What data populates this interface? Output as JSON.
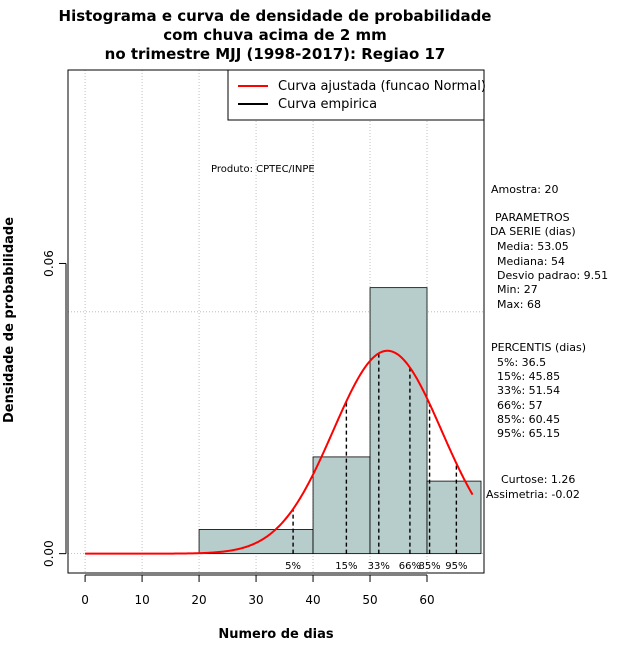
{
  "chart_data": {
    "type": "bar",
    "title_lines": [
      "Histograma e curva de densidade de probabilidade",
      "com chuva acima de 2 mm",
      "no trimestre MJJ (1998-2017): Regiao 17"
    ],
    "xlabel": "Numero de dias",
    "ylabel": "Densidade de probabilidade",
    "xlim": [
      -3,
      70
    ],
    "ylim": [
      -0.004,
      0.1
    ],
    "x_ticks": [
      0,
      10,
      20,
      30,
      40,
      50,
      60
    ],
    "y_ticks": [
      0.0,
      0.06
    ],
    "y_tick_labels": [
      "0.00",
      "0.06"
    ],
    "bins": [
      {
        "from": 20,
        "to": 40,
        "density": 0.005
      },
      {
        "from": 40,
        "to": 50,
        "density": 0.02
      },
      {
        "from": 50,
        "to": 60,
        "density": 0.055
      },
      {
        "from": 60,
        "to": 70,
        "density": 0.015
      }
    ],
    "normal_curve": {
      "mean": 53.05,
      "sd": 9.51,
      "from": 0,
      "to": 68
    },
    "percentile_lines": [
      {
        "label": "5%",
        "value": 36.5
      },
      {
        "label": "15%",
        "value": 45.85
      },
      {
        "label": "33%",
        "value": 51.54
      },
      {
        "label": "66%",
        "value": 57
      },
      {
        "label": "85%",
        "value": 60.45
      },
      {
        "label": "95%",
        "value": 65.15
      }
    ],
    "legend": [
      {
        "label": "Curva ajustada (funcao Normal)",
        "color": "#ff0000"
      },
      {
        "label": "Curva empirica",
        "color": "#000000"
      }
    ],
    "product_label": "Produto: CPTEC/INPE",
    "colors": {
      "bar_fill": "#b7cdcb",
      "curve": "#ff0000",
      "grid": "#b0b0b0",
      "axis": "#000000"
    }
  },
  "stats_panel": {
    "sample": "Amostra: 20",
    "params_header_1": "PARAMETROS",
    "params_header_2": "DA SERIE (dias)",
    "params": [
      "Media: 53.05",
      "Mediana: 54",
      "Desvio padrao: 9.51",
      "Min: 27",
      "Max: 68"
    ],
    "percentis_header": "PERCENTIS (dias)",
    "percentis": [
      "5%: 36.5",
      "15%: 45.85",
      "33%: 51.54",
      "66%: 57",
      "85%: 60.45",
      "95%: 65.15"
    ],
    "curtose": "Curtose: 1.26",
    "assimetria": "Assimetria: -0.02"
  }
}
